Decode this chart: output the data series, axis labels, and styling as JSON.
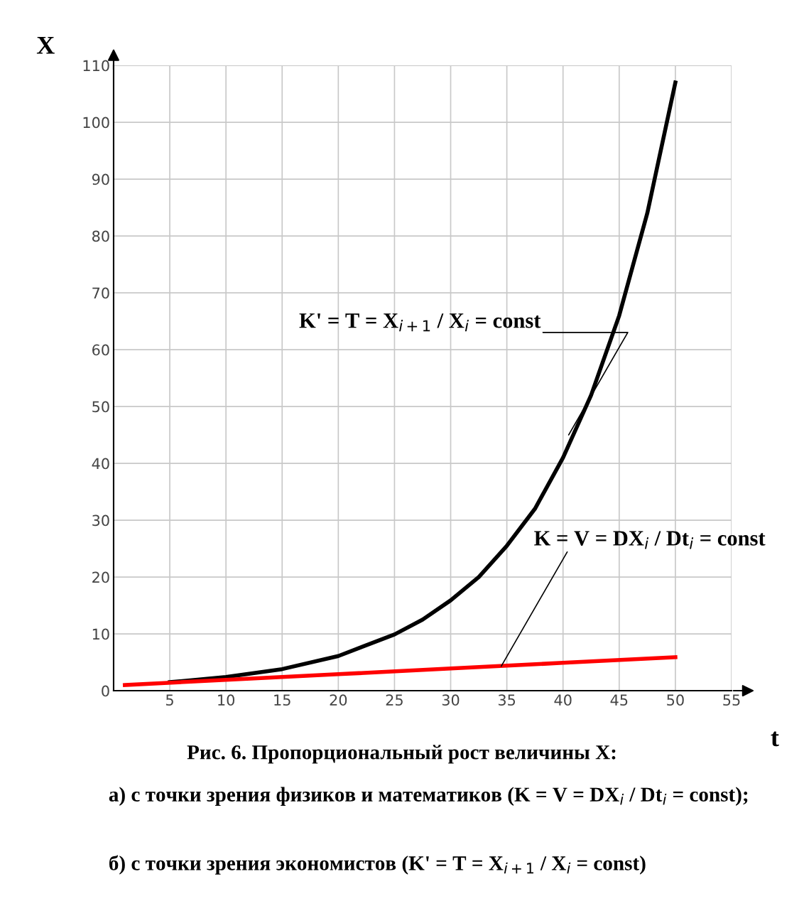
{
  "chart_data": {
    "type": "line",
    "xlabel": "t",
    "ylabel": "X",
    "xlim": [
      0,
      55
    ],
    "ylim": [
      0,
      110
    ],
    "xticks": [
      5,
      10,
      15,
      20,
      25,
      30,
      35,
      40,
      45,
      50,
      55
    ],
    "yticks": [
      0,
      10,
      20,
      30,
      40,
      50,
      60,
      70,
      80,
      90,
      100,
      110
    ],
    "grid": true,
    "marker": "none",
    "line_style": "solid",
    "series": [
      {
        "color": "#000000",
        "x": [
          5,
          10,
          15,
          20,
          25,
          27.5,
          30,
          32.5,
          35,
          37.5,
          40,
          42.5,
          45,
          47.5,
          50
        ],
        "values": [
          1.5,
          2.4,
          3.8,
          6.1,
          9.9,
          12.5,
          15.9,
          20,
          25.5,
          32,
          41,
          52,
          66,
          84,
          107
        ]
      },
      {
        "color": "#ff0000",
        "x": [
          1,
          10,
          20,
          30,
          40,
          50
        ],
        "values": [
          1,
          1.9,
          2.9,
          3.9,
          4.9,
          5.9
        ]
      }
    ],
    "annotations": [
      {
        "text": "K' = T = X$_{i+1}$ / X$_{i}$ = const",
        "x": 40.5,
        "y": 45
      },
      {
        "text": "K = V = DX$_{i}$ / Dt$_{i}$ = const",
        "x": 34.5,
        "y": 4.3
      },
      "Рис. 6. Пропорциональный рост величины X:",
      "а) с точки зрения физиков и математиков (K = V = DX$_{i}$ / Dt$_{i}$ = const);",
      "б) с точки зрения экономистов (K' = T = X$_{i+1}$ / X$_{i}$ = const)"
    ]
  }
}
